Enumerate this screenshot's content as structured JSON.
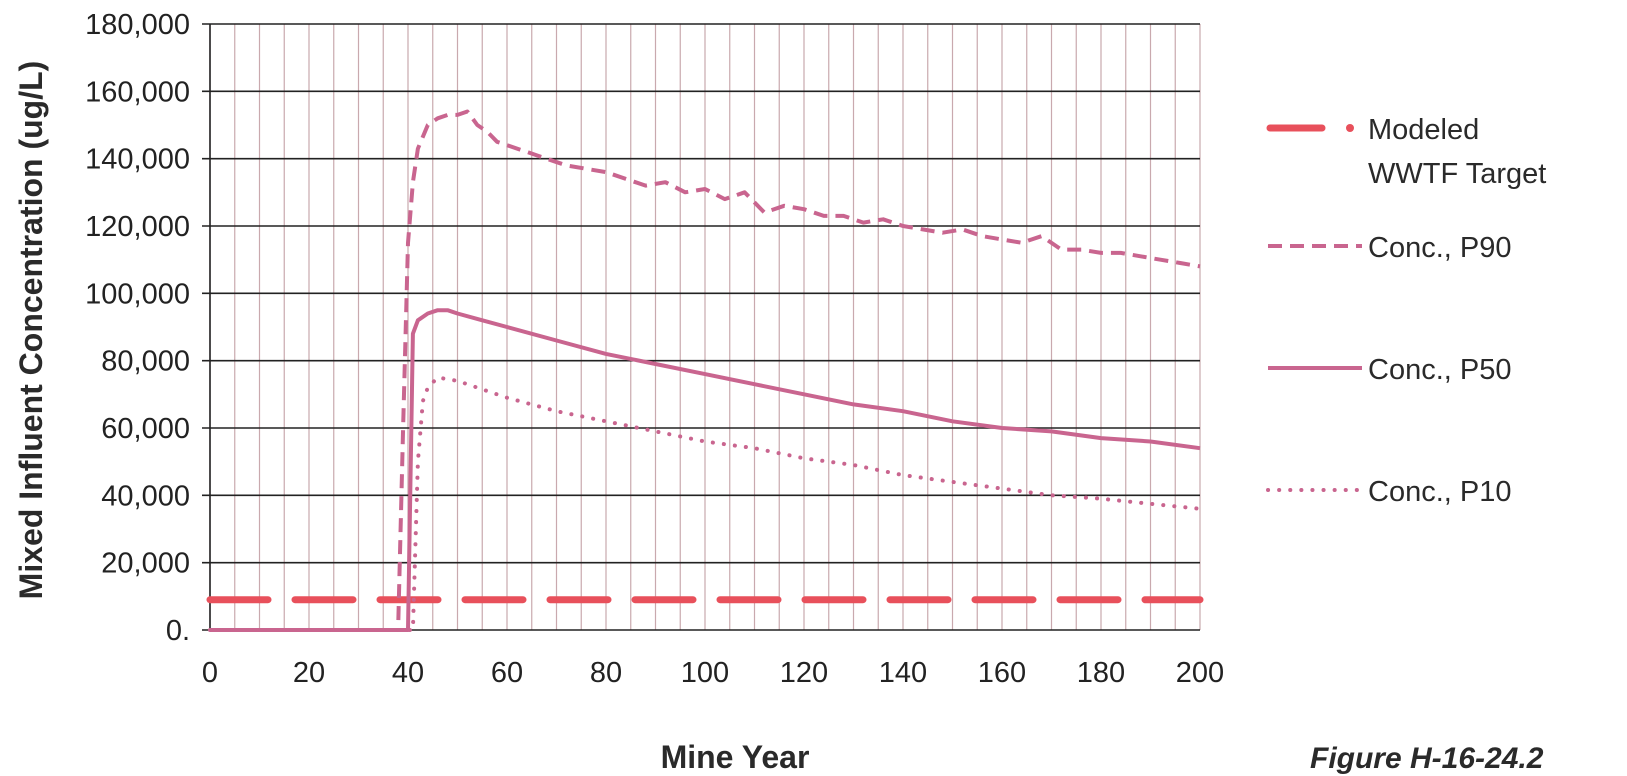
{
  "figure_label": "Figure H-16-24.2",
  "colors": {
    "target": "#e8505b",
    "conc": "#c9658f",
    "grid_major": "#222222",
    "grid_minor": "#c9a9ae"
  },
  "chart_data": {
    "type": "line",
    "xlabel": "Mine Year",
    "ylabel": "Mixed Influent Concentration (ug/L)",
    "xlim": [
      0,
      200
    ],
    "ylim": [
      0,
      180000
    ],
    "x_ticks": [
      "0",
      "20",
      "40",
      "60",
      "80",
      "100",
      "120",
      "140",
      "160",
      "180",
      "200"
    ],
    "y_ticks": [
      "0.",
      "20,000",
      "40,000",
      "60,000",
      "80,000",
      "100,000",
      "120,000",
      "140,000",
      "160,000",
      "180,000"
    ],
    "grid": true,
    "legend_position": "right",
    "series": [
      {
        "name": "Modeled WWTF Target",
        "legend_lines": [
          "Modeled",
          "WWTF Target"
        ],
        "style": "long-dash",
        "x": [
          0,
          200
        ],
        "y": [
          9000,
          9000
        ]
      },
      {
        "name": "Conc., P90",
        "style": "dash",
        "x": [
          0,
          38,
          39,
          40,
          41,
          42,
          44,
          46,
          48,
          50,
          52,
          54,
          56,
          58,
          60,
          64,
          68,
          72,
          76,
          80,
          84,
          88,
          92,
          96,
          100,
          104,
          108,
          112,
          116,
          120,
          124,
          128,
          132,
          136,
          140,
          144,
          148,
          152,
          156,
          160,
          164,
          168,
          172,
          176,
          180,
          184,
          188,
          192,
          196,
          200
        ],
        "y": [
          0,
          0,
          60000,
          115000,
          133000,
          143000,
          150000,
          152000,
          153000,
          153000,
          154000,
          150000,
          148000,
          145000,
          144000,
          142000,
          140000,
          138000,
          137000,
          136000,
          134000,
          132000,
          133000,
          130000,
          131000,
          128000,
          130000,
          124000,
          126000,
          125000,
          123000,
          123000,
          121000,
          122000,
          120000,
          119000,
          118000,
          119000,
          117000,
          116000,
          115000,
          117000,
          113000,
          113000,
          112000,
          112000,
          111000,
          110000,
          109000,
          108000
        ]
      },
      {
        "name": "Conc., P50",
        "style": "solid",
        "x": [
          0,
          40,
          41,
          42,
          44,
          46,
          48,
          50,
          55,
          60,
          70,
          80,
          90,
          100,
          110,
          120,
          130,
          140,
          150,
          160,
          170,
          180,
          190,
          200
        ],
        "y": [
          0,
          0,
          88000,
          92000,
          94000,
          95000,
          95000,
          94000,
          92000,
          90000,
          86000,
          82000,
          79000,
          76000,
          73000,
          70000,
          67000,
          65000,
          62000,
          60000,
          59000,
          57000,
          56000,
          54000
        ]
      },
      {
        "name": "Conc., P10",
        "style": "dotted",
        "x": [
          0,
          41,
          42,
          43,
          44,
          46,
          50,
          60,
          70,
          80,
          90,
          100,
          110,
          120,
          130,
          140,
          150,
          160,
          170,
          180,
          190,
          200
        ],
        "y": [
          0,
          0,
          50000,
          68000,
          72000,
          75000,
          74000,
          69000,
          65000,
          62000,
          59000,
          56000,
          54000,
          51000,
          49000,
          46000,
          44000,
          42000,
          40000,
          39000,
          37500,
          36000
        ]
      }
    ]
  }
}
